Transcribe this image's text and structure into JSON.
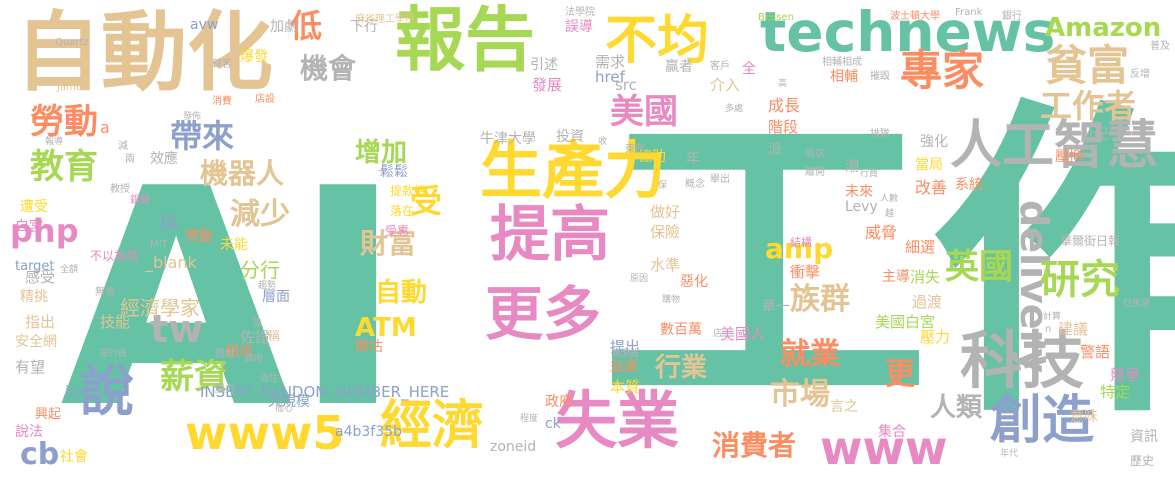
{
  "background": "#ffffff",
  "words": [
    {
      "text": "工作",
      "c": "#66c2a5"
    },
    {
      "text": "AI",
      "c": "#66c2a5"
    },
    {
      "text": "自動化",
      "c": "#e5c494"
    },
    {
      "text": "報告",
      "c": "#a6d854"
    },
    {
      "text": "生產力",
      "c": "#ffd92f"
    },
    {
      "text": "提高",
      "c": "#e78ac3"
    },
    {
      "text": "technews",
      "c": "#66c2a5"
    },
    {
      "text": "不均",
      "c": "#ffd92f"
    },
    {
      "text": "貧富",
      "c": "#e5c494"
    },
    {
      "text": "專家",
      "c": "#fc8d62"
    },
    {
      "text": "人工智慧",
      "c": "#b3b3b3"
    },
    {
      "text": "科技",
      "c": "#b3b3b3"
    },
    {
      "text": "失業",
      "c": "#e78ac3"
    },
    {
      "text": "經濟",
      "c": "#ffd92f"
    },
    {
      "text": "更多",
      "c": "#e78ac3"
    },
    {
      "text": "創造",
      "c": "#8da0cb"
    },
    {
      "text": "說",
      "c": "#8da0cb"
    },
    {
      "text": "www5",
      "c": "#ffd92f"
    },
    {
      "text": "www",
      "c": "#e78ac3"
    },
    {
      "text": "tw",
      "c": "#b3b3b3"
    },
    {
      "text": "delivery",
      "c": "#b3b3b3"
    },
    {
      "text": "研究",
      "c": "#a6d854"
    },
    {
      "text": "工作者",
      "c": "#e5c494"
    },
    {
      "text": "Amazon",
      "c": "#a6d854"
    },
    {
      "text": "美國",
      "c": "#e78ac3"
    },
    {
      "text": "勞動",
      "c": "#fc8d62"
    },
    {
      "text": "教育",
      "c": "#a6d854"
    },
    {
      "text": "帶來",
      "c": "#8da0cb"
    },
    {
      "text": "低",
      "c": "#fc8d62"
    },
    {
      "text": "機會",
      "c": "#b3b3b3"
    },
    {
      "text": "php",
      "c": "#e78ac3"
    },
    {
      "text": "機器人",
      "c": "#e5c494"
    },
    {
      "text": "減少",
      "c": "#e5c494"
    },
    {
      "text": "增加",
      "c": "#a6d854"
    },
    {
      "text": "受",
      "c": "#ffd92f"
    },
    {
      "text": "財富",
      "c": "#e5c494"
    },
    {
      "text": "amp",
      "c": "#ffd92f"
    },
    {
      "text": "英國",
      "c": "#a6d854"
    },
    {
      "text": "族群",
      "c": "#e5c494"
    },
    {
      "text": "就業",
      "c": "#fc8d62"
    },
    {
      "text": "市場",
      "c": "#e5c494"
    },
    {
      "text": "更",
      "c": "#fc8d62"
    },
    {
      "text": "人類",
      "c": "#b3b3b3"
    },
    {
      "text": "薪資",
      "c": "#a6d854"
    },
    {
      "text": "cb",
      "c": "#8da0cb"
    },
    {
      "text": "消費者",
      "c": "#fc8d62"
    },
    {
      "text": "行業",
      "c": "#e5c494"
    },
    {
      "text": "ATM",
      "c": "#ffd92f"
    },
    {
      "text": "自動",
      "c": "#ffd92f"
    },
    {
      "text": "經濟學家",
      "c": "#e5c494"
    },
    {
      "text": "分行",
      "c": "#a6d854"
    },
    {
      "text": "牛津大學",
      "c": "#b3b3b3"
    },
    {
      "text": "投資",
      "c": "#b3b3b3"
    },
    {
      "text": "協助",
      "c": "#ffd92f"
    },
    {
      "text": "年",
      "c": "#b3b3b3"
    },
    {
      "text": "成長",
      "c": "#fc8d62"
    },
    {
      "text": "階段",
      "c": "#fc8d62"
    },
    {
      "text": "派",
      "c": "#b3b3b3"
    },
    {
      "text": "威脅",
      "c": "#fc8d62"
    },
    {
      "text": "主導",
      "c": "#fc8d62"
    },
    {
      "text": "強化",
      "c": "#b3b3b3"
    },
    {
      "text": "分配",
      "c": "#b3b3b3"
    },
    {
      "text": "壓抑",
      "c": "#fc8d62"
    },
    {
      "text": "當局",
      "c": "#ffd92f"
    },
    {
      "text": "改善",
      "c": "#fc8d62"
    },
    {
      "text": "系統",
      "c": "#fc8d62"
    },
    {
      "text": "效應",
      "c": "#b3b3b3"
    },
    {
      "text": "發展",
      "c": "#e78ac3"
    },
    {
      "text": "需求",
      "c": "#b3b3b3"
    },
    {
      "text": "下行",
      "c": "#b3b3b3"
    },
    {
      "text": "加劇",
      "c": "#b3b3b3"
    },
    {
      "text": "爆發",
      "c": "#ffd92f"
    },
    {
      "text": "引述",
      "c": "#b3b3b3"
    },
    {
      "text": "贏者",
      "c": "#b3b3b3"
    },
    {
      "text": "介入",
      "c": "#e5c494"
    },
    {
      "text": "全",
      "c": "#e78ac3"
    },
    {
      "text": "相輔",
      "c": "#fc8d62"
    },
    {
      "text": "誤導",
      "c": "#e78ac3"
    },
    {
      "text": "src",
      "c": "#b3b3b3"
    },
    {
      "text": "href",
      "c": "#8da0cb"
    },
    {
      "text": "a",
      "c": "#fc8d62"
    },
    {
      "text": "avw",
      "c": "#8da0cb"
    },
    {
      "text": "換",
      "c": "#8da0cb"
    },
    {
      "text": "_blank",
      "c": "#e5c494"
    },
    {
      "text": "帶動",
      "c": "#fc8d62"
    },
    {
      "text": "未能",
      "c": "#ffd92f"
    },
    {
      "text": "做好",
      "c": "#e5c494"
    },
    {
      "text": "保險",
      "c": "#e5c494"
    },
    {
      "text": "水準",
      "c": "#e5c494"
    },
    {
      "text": "惡化",
      "c": "#fc8d62"
    },
    {
      "text": "衝擊",
      "c": "#fc8d62"
    },
    {
      "text": "細選",
      "c": "#fc8d62"
    },
    {
      "text": "消失",
      "c": "#a6d854"
    },
    {
      "text": "過渡",
      "c": "#e5c494"
    },
    {
      "text": "美國白宮",
      "c": "#a6d854"
    },
    {
      "text": "建議",
      "c": "#e5c494"
    },
    {
      "text": "警語",
      "c": "#fc8d62"
    },
    {
      "text": "壓力",
      "c": "#ffd92f"
    },
    {
      "text": "競爭",
      "c": "#e78ac3"
    },
    {
      "text": "特定",
      "c": "#a6d854"
    },
    {
      "text": "意味",
      "c": "#e5c494"
    },
    {
      "text": "資訊",
      "c": "#b3b3b3"
    },
    {
      "text": "歷史",
      "c": "#b3b3b3"
    },
    {
      "text": "未來",
      "c": "#fc8d62"
    },
    {
      "text": "潮",
      "c": "#b3b3b3"
    },
    {
      "text": "單一",
      "c": "#b3b3b3"
    },
    {
      "text": "言之",
      "c": "#e5c494"
    },
    {
      "text": "集合",
      "c": "#e78ac3"
    },
    {
      "text": "zoneid",
      "c": "#b3b3b3"
    },
    {
      "text": "數百萬",
      "c": "#fc8d62"
    },
    {
      "text": "美國人",
      "c": "#e78ac3"
    },
    {
      "text": "益處",
      "c": "#fc8d62"
    },
    {
      "text": "提出",
      "c": "#8da0cb"
    },
    {
      "text": "本質",
      "c": "#ffd92f"
    },
    {
      "text": "政府",
      "c": "#fc8d62"
    },
    {
      "text": "ck",
      "c": "#8da0cb"
    },
    {
      "text": "a4b3f35b",
      "c": "#8da0cb"
    },
    {
      "text": "大規模",
      "c": "#8da0cb"
    },
    {
      "text": "INSERT_RANDOM_NUMBER_HERE",
      "c": "#8da0cb"
    },
    {
      "text": "社會",
      "c": "#ffd92f"
    },
    {
      "text": "推估",
      "c": "#fc8d62"
    },
    {
      "text": "佐證",
      "c": "#b3b3b3"
    },
    {
      "text": "稱",
      "c": "#e5c494"
    },
    {
      "text": "層面",
      "c": "#8da0cb"
    },
    {
      "text": "相成",
      "c": "#fc8d62"
    },
    {
      "text": "技能",
      "c": "#e5c494"
    },
    {
      "text": "安全網",
      "c": "#e5c494"
    },
    {
      "text": "指出",
      "c": "#e5c494"
    },
    {
      "text": "精挑",
      "c": "#e5c494"
    },
    {
      "text": "感受",
      "c": "#b3b3b3"
    },
    {
      "text": "target",
      "c": "#8da0cb"
    },
    {
      "text": "有望",
      "c": "#b3b3b3"
    },
    {
      "text": "img",
      "c": "#8da0cb"
    },
    {
      "text": "興起",
      "c": "#fc8d62"
    },
    {
      "text": "說法",
      "c": "#e78ac3"
    },
    {
      "text": "白宮",
      "c": "#e78ac3"
    },
    {
      "text": "遭受",
      "c": "#ffd92f"
    },
    {
      "text": "受惠",
      "c": "#e78ac3"
    },
    {
      "text": "落在",
      "c": "#ffd92f"
    },
    {
      "text": "鬆鬆",
      "c": "#8da0cb"
    },
    {
      "text": "提款機",
      "c": "#ffd92f"
    },
    {
      "text": "一",
      "c": "#e78ac3"
    },
    {
      "text": "Levy",
      "c": "#b3b3b3"
    },
    {
      "text": "麻省理工學院",
      "c": "#e5c494"
    },
    {
      "text": "法學院",
      "c": "#b3b3b3"
    },
    {
      "text": "Bessen",
      "c": "#a6d854"
    },
    {
      "text": "波士頓大學",
      "c": "#fc8d62"
    },
    {
      "text": "Frank",
      "c": "#b3b3b3"
    },
    {
      "text": "Quartz",
      "c": "#b3b3b3"
    },
    {
      "text": "James",
      "c": "#e5c494"
    },
    {
      "text": "MIT",
      "c": "#b3b3b3"
    },
    {
      "text": "n",
      "c": "#b3b3b3"
    },
    {
      "text": "不以為然",
      "c": "#e78ac3"
    },
    {
      "text": "華爾街日報",
      "c": "#b3b3b3"
    },
    {
      "text": "結構",
      "c": "#e78ac3"
    },
    {
      "text": "顧客",
      "c": "#b3b3b3"
    },
    {
      "text": "店設",
      "c": "#fc8d62"
    },
    {
      "text": "消費",
      "c": "#fc8d62"
    },
    {
      "text": "發佈",
      "c": "#b3b3b3"
    },
    {
      "text": "銀員",
      "c": "#e78ac3"
    },
    {
      "text": "兩",
      "c": "#b3b3b3"
    },
    {
      "text": "減",
      "c": "#b3b3b3"
    },
    {
      "text": "報導",
      "c": "#b3b3b3"
    },
    {
      "text": "教授",
      "c": "#b3b3b3"
    },
    {
      "text": "全額",
      "c": "#b3b3b3"
    },
    {
      "text": "無需",
      "c": "#b3b3b3"
    },
    {
      "text": "銀行員",
      "c": "#b3b3b3"
    },
    {
      "text": "程度",
      "c": "#b3b3b3"
    },
    {
      "text": "擔心",
      "c": "#b3b3b3"
    },
    {
      "text": "亞馬遜",
      "c": "#b3b3b3"
    },
    {
      "text": "普及",
      "c": "#b3b3b3"
    },
    {
      "text": "反增",
      "c": "#b3b3b3"
    },
    {
      "text": "排隊",
      "c": "#b3b3b3"
    },
    {
      "text": "商店",
      "c": "#b3b3b3"
    },
    {
      "text": "離開",
      "c": "#b3b3b3"
    },
    {
      "text": "多處",
      "c": "#b3b3b3"
    },
    {
      "text": "客戶",
      "c": "#b3b3b3"
    },
    {
      "text": "銀行",
      "c": "#b3b3b3"
    },
    {
      "text": "摧毀",
      "c": "#b3b3b3"
    },
    {
      "text": "相輔相成",
      "c": "#b3b3b3"
    },
    {
      "text": "高",
      "c": "#b3b3b3"
    },
    {
      "text": "東西",
      "c": "#b3b3b3"
    },
    {
      "text": "收",
      "c": "#b3b3b3"
    },
    {
      "text": "舉出",
      "c": "#b3b3b3"
    },
    {
      "text": "概念",
      "c": "#b3b3b3"
    },
    {
      "text": "保",
      "c": "#b3b3b3"
    },
    {
      "text": "原因",
      "c": "#b3b3b3"
    },
    {
      "text": "購物",
      "c": "#b3b3b3"
    },
    {
      "text": "感測器",
      "c": "#b3b3b3"
    },
    {
      "text": "店",
      "c": "#b3b3b3"
    },
    {
      "text": "計算",
      "c": "#b3b3b3"
    },
    {
      "text": "人數",
      "c": "#b3b3b3"
    },
    {
      "text": "越",
      "c": "#b3b3b3"
    },
    {
      "text": "行員",
      "c": "#b3b3b3"
    },
    {
      "text": "年代",
      "c": "#b3b3b3"
    },
    {
      "text": "腦力",
      "c": "#b3b3b3"
    },
    {
      "text": "問世",
      "c": "#b3b3b3"
    },
    {
      "text": "需",
      "c": "#b3b3b3"
    },
    {
      "text": "調用",
      "c": "#b3b3b3"
    },
    {
      "text": "過往",
      "c": "#b3b3b3"
    },
    {
      "text": "趨勢",
      "c": "#b3b3b3"
    }
  ]
}
